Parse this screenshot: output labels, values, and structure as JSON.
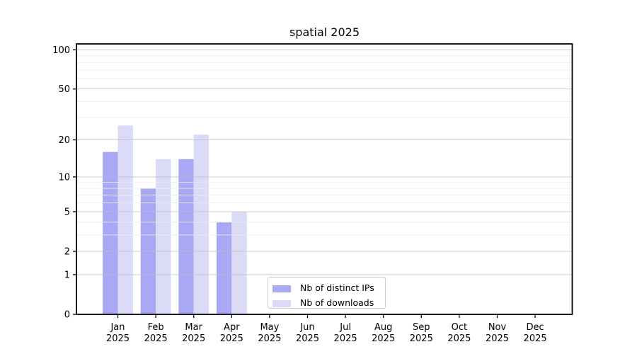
{
  "chart_data": {
    "type": "bar",
    "title": "spatial 2025",
    "categories": [
      "Jan",
      "Feb",
      "Mar",
      "Apr",
      "May",
      "Jun",
      "Jul",
      "Aug",
      "Sep",
      "Oct",
      "Nov",
      "Dec"
    ],
    "x_label_line2": "2025",
    "series": [
      {
        "name": "Nb of distinct IPs",
        "color": "#a8a8f4",
        "values": [
          16,
          8,
          14,
          4,
          0,
          0,
          0,
          0,
          0,
          0,
          0,
          0
        ]
      },
      {
        "name": "Nb of downloads",
        "color": "#dbdbf8",
        "values": [
          26,
          14,
          22,
          5,
          0,
          0,
          0,
          0,
          0,
          0,
          0,
          0
        ]
      }
    ],
    "yscale": "log1p",
    "ylim": [
      0,
      111
    ],
    "yticks": [
      0,
      1,
      2,
      5,
      10,
      20,
      50,
      100
    ],
    "minor_gridlines": [
      3,
      4,
      6,
      7,
      8,
      9,
      30,
      40,
      60,
      70,
      80,
      90
    ],
    "grid": true,
    "legend_position": "lower-center",
    "colors": {
      "grid_major": "#bdbdbd",
      "grid_minor": "#eaeaea",
      "spine": "#000000",
      "tick": "#000000",
      "legend_border": "#cccccc",
      "background": "#ffffff"
    }
  }
}
